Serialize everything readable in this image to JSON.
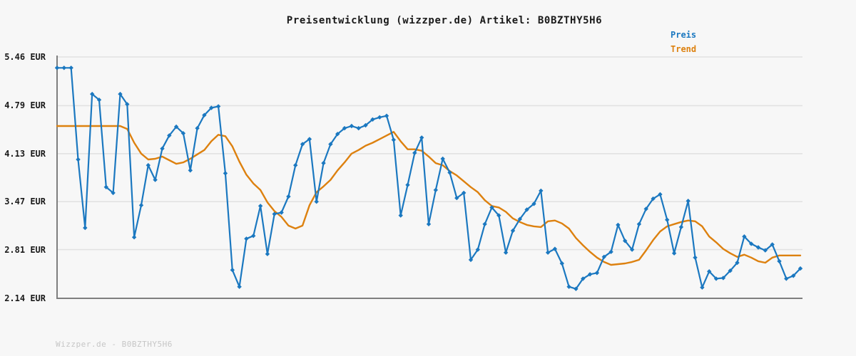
{
  "title": "Preisentwicklung (wizzper.de) Artikel: B0BZTHY5H6",
  "footer": "Wizzper.de - B0BZTHY5H6",
  "legend": {
    "preis": "Preis",
    "trend": "Trend"
  },
  "colors": {
    "price": "#1b78c0",
    "trend": "#dd810f",
    "grid": "#e2e2e2",
    "axis": "#7f7f7f",
    "title_text": "#1a1a1a",
    "tick_text": "#1a1a1a",
    "footer_text": "#c6c6c6",
    "background": "#f7f7f7"
  },
  "chart_data": {
    "type": "line",
    "title": "Preisentwicklung (wizzper.de) Artikel: B0BZTHY5H6",
    "xlabel": "",
    "ylabel": "",
    "currency": "EUR",
    "ylim": [
      2.14,
      5.46
    ],
    "grid": "horizontal",
    "legend_position": "top-right",
    "y_ticks": [
      {
        "value": 5.46,
        "label": "5.46 EUR"
      },
      {
        "value": 4.79,
        "label": "4.79 EUR"
      },
      {
        "value": 4.13,
        "label": "4.13 EUR"
      },
      {
        "value": 3.47,
        "label": "3.47 EUR"
      },
      {
        "value": 2.81,
        "label": "2.81 EUR"
      },
      {
        "value": 2.14,
        "label": "2.14 EUR"
      }
    ],
    "series": [
      {
        "name": "Preis",
        "style": "line-with-diamond-markers",
        "values": [
          5.31,
          5.31,
          5.31,
          4.05,
          3.11,
          4.95,
          4.87,
          3.67,
          3.59,
          4.95,
          4.81,
          2.98,
          3.42,
          3.97,
          3.77,
          4.2,
          4.38,
          4.5,
          4.41,
          3.9,
          4.48,
          4.66,
          4.76,
          4.78,
          3.86,
          2.53,
          2.3,
          2.96,
          3.0,
          3.41,
          2.75,
          3.3,
          3.32,
          3.54,
          3.97,
          4.26,
          4.33,
          3.47,
          4.0,
          4.26,
          4.4,
          4.48,
          4.51,
          4.48,
          4.52,
          4.6,
          4.63,
          4.65,
          4.32,
          3.28,
          3.7,
          4.14,
          4.35,
          3.16,
          3.63,
          4.06,
          3.87,
          3.52,
          3.59,
          2.67,
          2.81,
          3.16,
          3.39,
          3.28,
          2.77,
          3.07,
          3.23,
          3.36,
          3.44,
          3.62,
          2.77,
          2.82,
          2.62,
          2.3,
          2.27,
          2.41,
          2.47,
          2.49,
          2.71,
          2.78,
          3.15,
          2.93,
          2.81,
          3.16,
          3.37,
          3.51,
          3.57,
          3.22,
          2.76,
          3.12,
          3.48,
          2.7,
          2.29,
          2.51,
          2.41,
          2.42,
          2.52,
          2.63,
          2.99,
          2.89,
          2.84,
          2.8,
          2.88,
          2.65,
          2.41,
          2.45,
          2.55
        ]
      },
      {
        "name": "Trend",
        "style": "smooth-line",
        "values": [
          4.51,
          4.51,
          4.51,
          4.51,
          4.51,
          4.51,
          4.51,
          4.51,
          4.51,
          4.51,
          4.47,
          4.28,
          4.13,
          4.05,
          4.06,
          4.09,
          4.04,
          3.99,
          4.01,
          4.06,
          4.12,
          4.18,
          4.3,
          4.39,
          4.37,
          4.23,
          4.02,
          3.84,
          3.72,
          3.63,
          3.46,
          3.34,
          3.26,
          3.14,
          3.1,
          3.14,
          3.42,
          3.6,
          3.68,
          3.77,
          3.9,
          4.01,
          4.13,
          4.18,
          4.24,
          4.28,
          4.33,
          4.38,
          4.43,
          4.3,
          4.19,
          4.19,
          4.17,
          4.09,
          4.0,
          3.97,
          3.89,
          3.83,
          3.75,
          3.67,
          3.6,
          3.49,
          3.41,
          3.39,
          3.33,
          3.24,
          3.19,
          3.15,
          3.13,
          3.12,
          3.2,
          3.21,
          3.17,
          3.1,
          2.97,
          2.87,
          2.78,
          2.7,
          2.64,
          2.6,
          2.61,
          2.62,
          2.64,
          2.67,
          2.8,
          2.94,
          3.06,
          3.13,
          3.16,
          3.19,
          3.21,
          3.2,
          3.13,
          2.99,
          2.91,
          2.82,
          2.76,
          2.71,
          2.74,
          2.7,
          2.65,
          2.63,
          2.7,
          2.73,
          2.73,
          2.73,
          2.73
        ]
      }
    ]
  }
}
